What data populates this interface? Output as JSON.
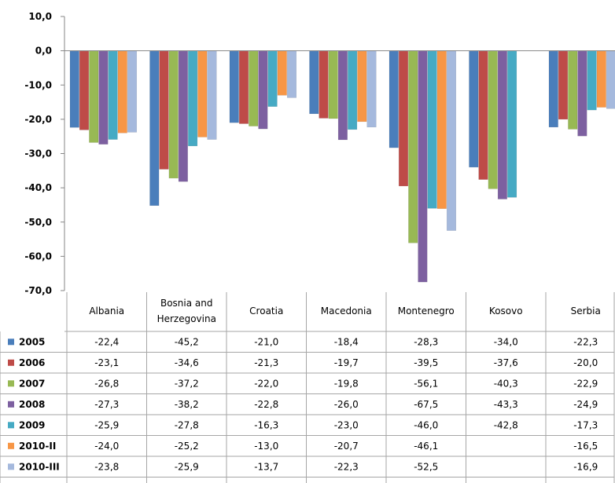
{
  "chart_data": {
    "type": "bar",
    "title": "",
    "xlabel": "",
    "ylabel": "",
    "ylim": [
      -70,
      10
    ],
    "yticks": [
      "10,0",
      "0,0",
      "-10,0",
      "-20,0",
      "-30,0",
      "-40,0",
      "-50,0",
      "-60,0",
      "-70,0"
    ],
    "grid": false,
    "legend": "data-table-left",
    "categories": [
      "Albania",
      "Bosnia and Herzegovina",
      "Croatia",
      "Macedonia",
      "Montenegro",
      "Kosovo",
      "Serbia"
    ],
    "category_lines": [
      [
        "Albania"
      ],
      [
        "Bosnia and",
        "Herzegovina"
      ],
      [
        "Croatia"
      ],
      [
        "Macedonia"
      ],
      [
        "Montenegro"
      ],
      [
        "Kosovo"
      ],
      [
        "Serbia"
      ]
    ],
    "series": [
      {
        "name": "2005",
        "color": "#4a7ebb",
        "values": [
          -22.4,
          -45.2,
          -21.0,
          -18.4,
          -28.3,
          -34.0,
          -22.3
        ],
        "labels": [
          "-22,4",
          "-45,2",
          "-21,0",
          "-18,4",
          "-28,3",
          "-34,0",
          "-22,3"
        ]
      },
      {
        "name": "2006",
        "color": "#be4b48",
        "values": [
          -23.1,
          -34.6,
          -21.3,
          -19.7,
          -39.5,
          -37.6,
          -20.0
        ],
        "labels": [
          "-23,1",
          "-34,6",
          "-21,3",
          "-19,7",
          "-39,5",
          "-37,6",
          "-20,0"
        ]
      },
      {
        "name": "2007",
        "color": "#98b954",
        "values": [
          -26.8,
          -37.2,
          -22.0,
          -19.8,
          -56.1,
          -40.3,
          -22.9
        ],
        "labels": [
          "-26,8",
          "-37,2",
          "-22,0",
          "-19,8",
          "-56,1",
          "-40,3",
          "-22,9"
        ]
      },
      {
        "name": "2008",
        "color": "#7d60a0",
        "values": [
          -27.3,
          -38.2,
          -22.8,
          -26.0,
          -67.5,
          -43.3,
          -24.9
        ],
        "labels": [
          "-27,3",
          "-38,2",
          "-22,8",
          "-26,0",
          "-67,5",
          "-43,3",
          "-24,9"
        ]
      },
      {
        "name": "2009",
        "color": "#46aac4",
        "values": [
          -25.9,
          -27.8,
          -16.3,
          -23.0,
          -46.0,
          -42.8,
          -17.3
        ],
        "labels": [
          "-25,9",
          "-27,8",
          "-16,3",
          "-23,0",
          "-46,0",
          "-42,8",
          "-17,3"
        ]
      },
      {
        "name": "2010-II",
        "color": "#f79646",
        "values": [
          -24.0,
          -25.2,
          -13.0,
          -20.7,
          -46.1,
          null,
          -16.5
        ],
        "labels": [
          "-24,0",
          "-25,2",
          "-13,0",
          "-20,7",
          "-46,1",
          "",
          "-16,5"
        ]
      },
      {
        "name": "2010-III",
        "color": "#a5b9dd",
        "values": [
          -23.8,
          -25.9,
          -13.7,
          -22.3,
          -52.5,
          null,
          -16.9
        ],
        "labels": [
          "-23,8",
          "-25,9",
          "-13,7",
          "-22,3",
          "-52,5",
          "",
          "-16,9"
        ]
      }
    ]
  }
}
